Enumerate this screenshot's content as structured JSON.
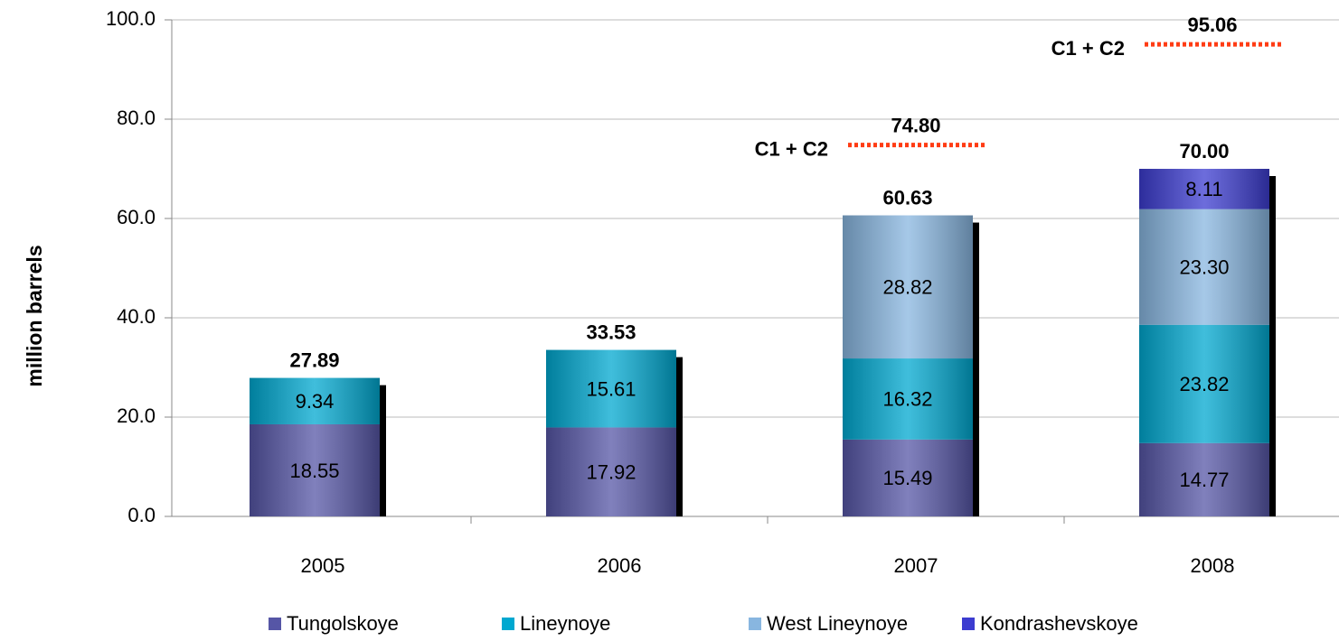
{
  "chart_data": {
    "type": "stacked_bar",
    "y_label": "million barrels",
    "categories": [
      "2005",
      "2006",
      "2007",
      "2008"
    ],
    "series": [
      {
        "name": "Tungolskoye",
        "color": "#5656a6",
        "values": [
          18.55,
          17.92,
          15.49,
          14.77
        ],
        "value_labels": [
          "18.55",
          "17.92",
          "15.49",
          "14.77"
        ]
      },
      {
        "name": "Lineynoye",
        "color": "#00a8d0",
        "values": [
          9.34,
          15.61,
          16.32,
          23.82
        ],
        "value_labels": [
          "9.34",
          "15.61",
          "16.32",
          "23.82"
        ]
      },
      {
        "name": "West Lineynoye",
        "color": "#88b6e0",
        "values": [
          null,
          null,
          28.82,
          23.3
        ],
        "value_labels": [
          null,
          null,
          "28.82",
          "23.30"
        ]
      },
      {
        "name": "Kondrashevskoye",
        "color": "#3c3cd0",
        "values": [
          null,
          null,
          null,
          8.11
        ],
        "value_labels": [
          null,
          null,
          null,
          "8.11"
        ]
      }
    ],
    "totals": {
      "values": [
        27.89,
        33.53,
        60.63,
        70
      ],
      "value_labels": [
        "27.89",
        "33.53",
        "60.63",
        "70.00"
      ]
    },
    "reserves": {
      "name": "C1 + C2",
      "color": "#ff3c14",
      "values": [
        null,
        null,
        74.8,
        95.06
      ],
      "value_labels": [
        null,
        null,
        "74.80",
        "95.06"
      ]
    },
    "ylim": [
      0,
      100
    ],
    "yticks": [
      {
        "value": 0,
        "label": "0.0"
      },
      {
        "value": 20,
        "label": "20.0"
      },
      {
        "value": 40,
        "label": "40.0"
      },
      {
        "value": 60,
        "label": "60.0"
      },
      {
        "value": 80,
        "label": "80.0"
      },
      {
        "value": 100,
        "label": "100.0"
      }
    ],
    "grid": true,
    "legend": "bottom"
  }
}
